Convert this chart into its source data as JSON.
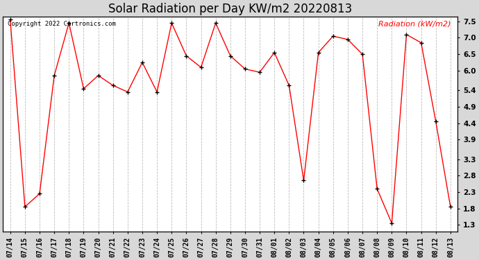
{
  "title": "Solar Radiation per Day KW/m2 20220813",
  "copyright_text": "Copyright 2022 Cartronics.com",
  "legend_label": "Radiation (kW/m2)",
  "dates": [
    "07/14",
    "07/15",
    "07/16",
    "07/17",
    "07/18",
    "07/19",
    "07/20",
    "07/21",
    "07/22",
    "07/23",
    "07/24",
    "07/25",
    "07/26",
    "07/27",
    "07/28",
    "07/29",
    "07/30",
    "07/31",
    "08/01",
    "08/02",
    "08/03",
    "08/04",
    "08/05",
    "08/06",
    "08/07",
    "08/08",
    "08/09",
    "08/10",
    "08/11",
    "08/12",
    "08/13"
  ],
  "values": [
    7.55,
    1.85,
    2.25,
    5.85,
    7.45,
    5.45,
    5.85,
    5.55,
    5.35,
    6.25,
    5.35,
    7.45,
    6.45,
    6.1,
    7.45,
    6.45,
    6.05,
    5.95,
    6.55,
    5.55,
    2.65,
    6.55,
    7.05,
    6.95,
    6.5,
    2.4,
    1.35,
    7.1,
    6.85,
    4.45,
    1.85
  ],
  "yticks": [
    1.3,
    1.8,
    2.3,
    2.8,
    3.3,
    3.9,
    4.4,
    4.9,
    5.4,
    6.0,
    6.5,
    7.0,
    7.5
  ],
  "ymin": 1.1,
  "ymax": 7.65,
  "line_color": "#ff0000",
  "marker_color": "#000000",
  "grid_color": "#bbbbbb",
  "plot_bg_color": "#ffffff",
  "fig_bg_color": "#d8d8d8",
  "title_fontsize": 12,
  "copyright_color": "#000000",
  "legend_color": "#ff0000",
  "tick_label_fontsize": 7.5,
  "x_tick_fontsize": 7
}
